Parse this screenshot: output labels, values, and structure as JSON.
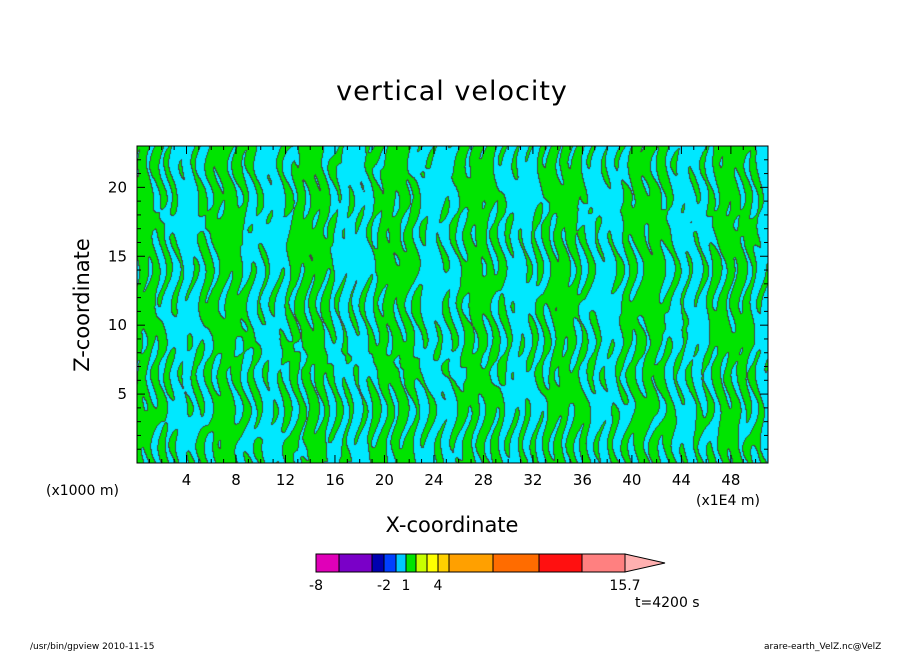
{
  "chart_data": {
    "type": "heatmap",
    "title": "vertical velocity",
    "xlabel": "X-coordinate",
    "ylabel": "Z-coordinate",
    "x_unit_label": "(x1E4 m)",
    "y_unit_label": "(x1000 m)",
    "xlim": [
      0,
      51
    ],
    "ylim": [
      0,
      23
    ],
    "x_ticks": [
      "4",
      "8",
      "12",
      "16",
      "20",
      "24",
      "28",
      "32",
      "36",
      "40",
      "44",
      "48"
    ],
    "y_ticks": [
      "5",
      "10",
      "15",
      "20"
    ],
    "contour_levels": [
      0
    ],
    "fill_colors": {
      "negative": "#00e8ff",
      "positive": "#00e400"
    },
    "colorbar": {
      "bins": [
        {
          "color": "#e000b8"
        },
        {
          "color": "#7a00c8"
        },
        {
          "color": "#0000b0"
        },
        {
          "color": "#0040ff"
        },
        {
          "color": "#00c8ff"
        },
        {
          "color": "#00e400"
        },
        {
          "color": "#c8ff00"
        },
        {
          "color": "#ffff00"
        },
        {
          "color": "#ffd000"
        },
        {
          "color": "#ffa000"
        },
        {
          "color": "#ff6c00"
        },
        {
          "color": "#ff1010"
        },
        {
          "color": "#ff8080"
        }
      ],
      "tick_labels": [
        "-8",
        "-2",
        "1",
        "4",
        "15.7"
      ]
    },
    "time_label": "t=4200 s",
    "footer_left": "/usr/bin/gpview   2010-11-15",
    "footer_right": "arare-earth_VelZ.nc@VelZ"
  }
}
